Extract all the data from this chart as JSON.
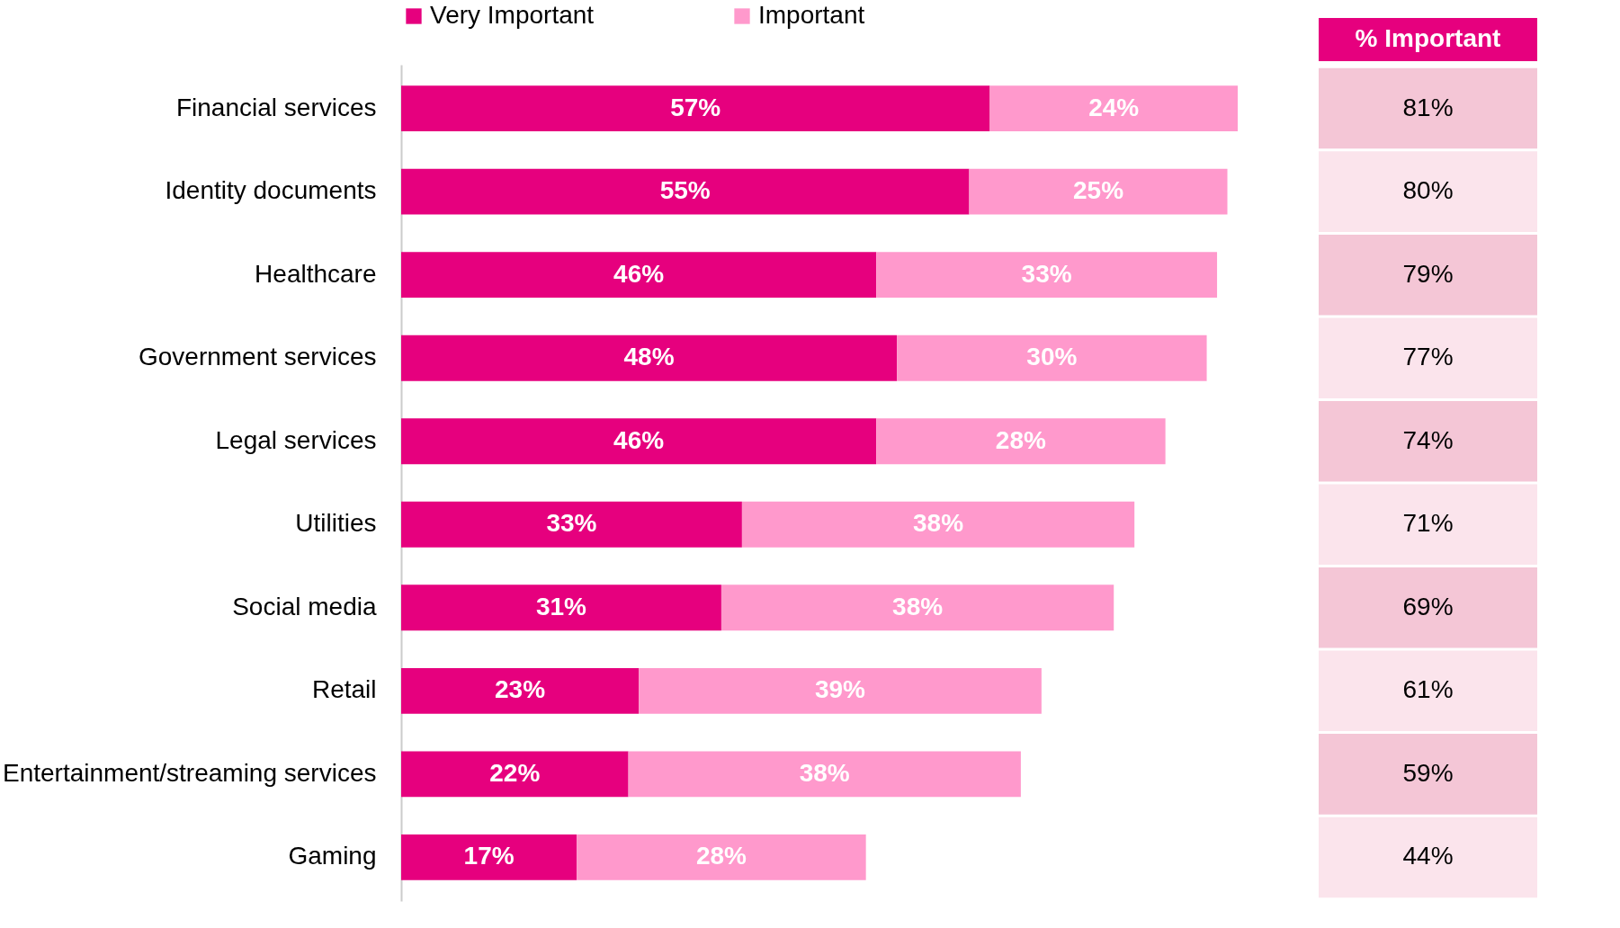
{
  "chart_data": {
    "type": "bar",
    "orientation": "horizontal",
    "stacked": true,
    "legend": "top",
    "categories": [
      "Financial services",
      "Identity documents",
      "Healthcare",
      "Government services",
      "Legal services",
      "Utilities",
      "Social media",
      "Retail",
      "Entertainment/streaming services",
      "Gaming"
    ],
    "series": [
      {
        "name": "Very Important",
        "color": "#e6007e",
        "values": [
          57,
          55,
          46,
          48,
          46,
          33,
          31,
          23,
          22,
          17
        ],
        "value_labels": [
          "57%",
          "55%",
          "46%",
          "48%",
          "46%",
          "33%",
          "31%",
          "23%",
          "22%",
          "17%"
        ]
      },
      {
        "name": "Important",
        "color": "#ff99cc",
        "values": [
          24,
          25,
          33,
          30,
          28,
          38,
          38,
          39,
          38,
          28
        ],
        "value_labels": [
          "24%",
          "25%",
          "33%",
          "30%",
          "28%",
          "38%",
          "38%",
          "39%",
          "38%",
          "28%"
        ]
      }
    ],
    "annotations": [
      "% Important",
      "81%",
      "80%",
      "79%",
      "77%",
      "74%",
      "71%",
      "69%",
      "61%",
      "59%",
      "44%"
    ]
  }
}
